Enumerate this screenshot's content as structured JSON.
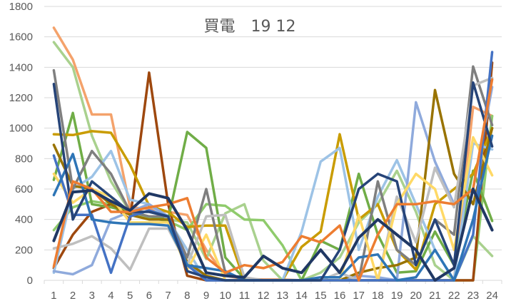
{
  "chart_data": {
    "type": "line",
    "title": "買電　19 12",
    "xlabel": "",
    "ylabel": "",
    "ylim": [
      0,
      1800
    ],
    "yticks": [
      "0",
      "200",
      "400",
      "600",
      "800",
      "1000",
      "1200",
      "1400",
      "1600",
      "1800"
    ],
    "categories": [
      "1",
      "2",
      "3",
      "4",
      "5",
      "6",
      "7",
      "8",
      "9",
      "10",
      "11",
      "12",
      "13",
      "14",
      "15",
      "16",
      "17",
      "18",
      "19",
      "20",
      "21",
      "22",
      "23",
      "24"
    ],
    "grid": true,
    "legend": "none",
    "series": [
      {
        "color": "#F4A26B",
        "values": [
          1660,
          1450,
          1090,
          1090,
          480,
          470,
          450,
          430,
          200,
          30,
          10,
          5,
          5,
          0,
          0,
          0,
          0,
          0,
          0,
          0,
          0,
          0,
          1140,
          1080
        ]
      },
      {
        "color": "#A9D18E",
        "values": [
          1565,
          1400,
          950,
          650,
          450,
          420,
          400,
          380,
          140,
          440,
          500,
          130,
          0,
          0,
          50,
          150,
          380,
          500,
          720,
          450,
          100,
          0,
          290,
          160
        ]
      },
      {
        "color": "#8FCB6C",
        "values": [
          330,
          480,
          520,
          500,
          440,
          410,
          390,
          330,
          500,
          490,
          400,
          395,
          230,
          0,
          0,
          0,
          0,
          0,
          0,
          0,
          0,
          0,
          0,
          1080
        ]
      },
      {
        "color": "#9E480E",
        "values": [
          80,
          300,
          450,
          500,
          400,
          1365,
          500,
          30,
          0,
          0,
          0,
          0,
          0,
          0,
          0,
          0,
          0,
          0,
          0,
          0,
          0,
          0,
          0,
          1430
        ]
      },
      {
        "color": "#70AD47",
        "values": [
          660,
          1100,
          500,
          480,
          450,
          420,
          400,
          975,
          870,
          150,
          10,
          0,
          0,
          0,
          260,
          200,
          700,
          300,
          50,
          60,
          320,
          100,
          720,
          390
        ]
      },
      {
        "color": "#C99C00",
        "values": [
          960,
          955,
          980,
          970,
          760,
          490,
          450,
          350,
          360,
          360,
          0,
          0,
          0,
          220,
          320,
          960,
          400,
          500,
          200,
          70,
          500,
          600,
          700,
          1000
        ]
      },
      {
        "color": "#9DC3E6",
        "values": [
          50,
          600,
          680,
          850,
          530,
          500,
          400,
          200,
          0,
          0,
          0,
          0,
          0,
          320,
          780,
          870,
          200,
          550,
          790,
          500,
          200,
          0,
          900,
          860
        ]
      },
      {
        "color": "#8FAADC",
        "values": [
          60,
          40,
          100,
          400,
          450,
          500,
          420,
          100,
          20,
          0,
          0,
          0,
          0,
          0,
          0,
          0,
          30,
          20,
          0,
          1170,
          780,
          500,
          600,
          1270
        ]
      },
      {
        "color": "#997300",
        "values": [
          890,
          620,
          600,
          500,
          430,
          400,
          400,
          120,
          30,
          0,
          0,
          0,
          0,
          0,
          0,
          0,
          50,
          80,
          100,
          150,
          1250,
          700,
          500,
          1000
        ]
      },
      {
        "color": "#7F7F7F",
        "values": [
          1380,
          600,
          850,
          700,
          450,
          420,
          420,
          150,
          600,
          50,
          0,
          0,
          0,
          0,
          0,
          0,
          0,
          650,
          200,
          100,
          400,
          300,
          1405,
          1020
        ]
      },
      {
        "color": "#BFBFBF",
        "values": [
          210,
          240,
          290,
          210,
          70,
          340,
          340,
          100,
          420,
          430,
          20,
          0,
          0,
          0,
          0,
          50,
          0,
          0,
          550,
          250,
          740,
          480,
          1280,
          1330
        ]
      },
      {
        "color": "#FFD966",
        "values": [
          700,
          510,
          600,
          550,
          380,
          380,
          380,
          70,
          300,
          0,
          0,
          0,
          0,
          0,
          0,
          0,
          430,
          0,
          500,
          700,
          600,
          200,
          940,
          690
        ]
      },
      {
        "color": "#4472C4",
        "values": [
          820,
          430,
          430,
          50,
          420,
          460,
          420,
          100,
          0,
          0,
          0,
          0,
          0,
          0,
          0,
          0,
          0,
          0,
          0,
          0,
          0,
          0,
          300,
          1500
        ]
      },
      {
        "color": "#2E75B6",
        "values": [
          560,
          830,
          400,
          380,
          370,
          370,
          360,
          100,
          80,
          60,
          0,
          0,
          0,
          0,
          20,
          20,
          150,
          170,
          0,
          20,
          200,
          0,
          400,
          950
        ]
      },
      {
        "color": "#264478",
        "values": [
          1290,
          400,
          650,
          550,
          450,
          450,
          420,
          60,
          20,
          0,
          0,
          0,
          0,
          0,
          0,
          200,
          600,
          700,
          650,
          100,
          400,
          100,
          1300,
          880
        ]
      },
      {
        "color": "#ED7D31",
        "values": [
          90,
          650,
          600,
          450,
          450,
          480,
          500,
          540,
          150,
          50,
          100,
          80,
          120,
          290,
          250,
          360,
          0,
          300,
          500,
          500,
          520,
          500,
          600,
          1320
        ]
      },
      {
        "color": "#203864",
        "values": [
          260,
          580,
          590,
          520,
          460,
          570,
          540,
          330,
          50,
          30,
          20,
          160,
          80,
          50,
          200,
          50,
          280,
          400,
          300,
          200,
          0,
          80,
          600,
          330
        ]
      }
    ]
  }
}
